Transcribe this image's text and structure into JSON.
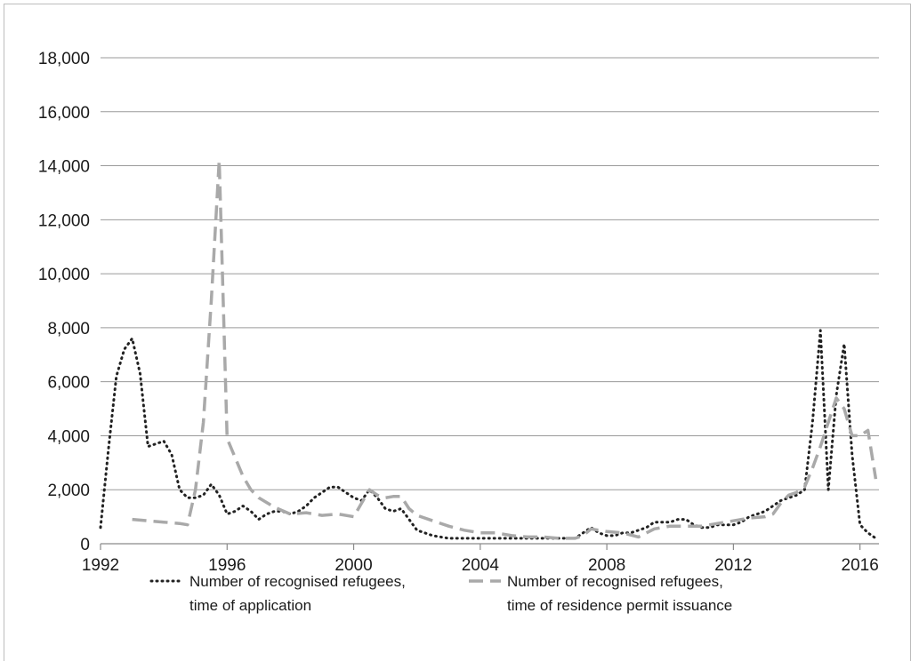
{
  "chart_data": {
    "type": "line",
    "title": "",
    "xlabel": "",
    "ylabel": "",
    "xlim": [
      1992,
      2016.6
    ],
    "ylim": [
      0,
      18000
    ],
    "grid": true,
    "legend_position": "bottom",
    "xticks": [
      "1992",
      "1996",
      "2000",
      "2004",
      "2008",
      "2012",
      "2016"
    ],
    "xtick_values": [
      1992,
      1996,
      2000,
      2004,
      2008,
      2012,
      2016
    ],
    "yticks": [
      "0",
      "2,000",
      "4,000",
      "6,000",
      "8,000",
      "10,000",
      "12,000",
      "14,000",
      "16,000",
      "18,000"
    ],
    "ytick_values": [
      0,
      2000,
      4000,
      6000,
      8000,
      10000,
      12000,
      14000,
      16000,
      18000
    ],
    "series": [
      {
        "name": "Number of recognised refugees, time of application",
        "name_lines": [
          "Number of recognised refugees,",
          "time of application"
        ],
        "style": "dotted",
        "color": "#222222",
        "x": [
          1992.0,
          1992.25,
          1992.5,
          1992.75,
          1993.0,
          1993.25,
          1993.5,
          1993.75,
          1994.0,
          1994.25,
          1994.5,
          1994.75,
          1995.0,
          1995.25,
          1995.5,
          1995.75,
          1996.0,
          1996.25,
          1996.5,
          1996.75,
          1997.0,
          1997.25,
          1997.5,
          1997.75,
          1998.0,
          1998.25,
          1998.5,
          1998.75,
          1999.0,
          1999.25,
          1999.5,
          1999.75,
          2000.0,
          2000.25,
          2000.5,
          2000.75,
          2001.0,
          2001.25,
          2001.5,
          2001.75,
          2002.0,
          2002.5,
          2003.0,
          2003.5,
          2004.0,
          2004.5,
          2005.0,
          2005.5,
          2006.0,
          2006.5,
          2007.0,
          2007.25,
          2007.5,
          2007.75,
          2008.0,
          2008.25,
          2008.5,
          2008.75,
          2009.0,
          2009.25,
          2009.5,
          2009.75,
          2010.0,
          2010.25,
          2010.5,
          2010.75,
          2011.0,
          2011.25,
          2011.5,
          2011.75,
          2012.0,
          2012.25,
          2012.5,
          2012.75,
          2013.0,
          2013.25,
          2013.5,
          2013.75,
          2014.0,
          2014.25,
          2014.5,
          2014.75,
          2015.0,
          2015.25,
          2015.5,
          2015.75,
          2016.0,
          2016.25,
          2016.5
        ],
        "y": [
          600,
          3500,
          6200,
          7200,
          7600,
          6300,
          3600,
          3700,
          3800,
          3300,
          2000,
          1700,
          1700,
          1800,
          2200,
          1800,
          1100,
          1200,
          1400,
          1200,
          900,
          1100,
          1200,
          1200,
          1100,
          1200,
          1400,
          1700,
          1900,
          2100,
          2100,
          1900,
          1700,
          1600,
          2000,
          1700,
          1300,
          1200,
          1300,
          900,
          500,
          300,
          200,
          200,
          200,
          200,
          200,
          200,
          200,
          200,
          200,
          400,
          600,
          400,
          300,
          300,
          400,
          400,
          500,
          600,
          800,
          800,
          800,
          900,
          900,
          700,
          600,
          600,
          700,
          700,
          700,
          800,
          1000,
          1100,
          1200,
          1400,
          1600,
          1700,
          1800,
          2000,
          4500,
          7900,
          2000,
          5500,
          7400,
          3300,
          700,
          400,
          200
        ]
      },
      {
        "name": "Number of recognised refugees, time of residence permit issuance",
        "name_lines": [
          "Number of recognised refugees,",
          "time of residence permit issuance"
        ],
        "style": "dashed",
        "color": "#a9a9a9",
        "x": [
          1993.0,
          1993.5,
          1994.0,
          1994.5,
          1994.75,
          1995.0,
          1995.25,
          1995.5,
          1995.75,
          1996.0,
          1996.25,
          1996.5,
          1996.75,
          1997.0,
          1997.5,
          1998.0,
          1998.5,
          1999.0,
          1999.5,
          2000.0,
          2000.25,
          2000.5,
          2000.75,
          2001.0,
          2001.25,
          2001.5,
          2001.75,
          2002.0,
          2002.5,
          2003.0,
          2003.5,
          2004.0,
          2004.5,
          2005.0,
          2005.5,
          2006.0,
          2006.5,
          2007.0,
          2007.25,
          2007.5,
          2007.75,
          2008.0,
          2008.5,
          2009.0,
          2009.25,
          2009.5,
          2010.0,
          2010.5,
          2011.0,
          2011.5,
          2012.0,
          2012.5,
          2013.0,
          2013.25,
          2013.5,
          2013.75,
          2014.0,
          2014.25,
          2014.5,
          2014.75,
          2015.0,
          2015.25,
          2015.5,
          2015.75,
          2016.0,
          2016.25,
          2016.5
        ],
        "y": [
          900,
          850,
          800,
          750,
          700,
          2000,
          4500,
          9000,
          14200,
          3900,
          3200,
          2500,
          2000,
          1700,
          1350,
          1100,
          1150,
          1050,
          1100,
          1000,
          1500,
          2000,
          1800,
          1700,
          1750,
          1750,
          1300,
          1050,
          850,
          650,
          500,
          400,
          400,
          300,
          250,
          250,
          200,
          200,
          300,
          550,
          500,
          450,
          400,
          250,
          400,
          550,
          650,
          650,
          650,
          750,
          850,
          950,
          1000,
          1100,
          1500,
          1800,
          1900,
          2100,
          2800,
          3600,
          4500,
          5400,
          5000,
          4000,
          4000,
          4200,
          2400
        ]
      }
    ]
  }
}
